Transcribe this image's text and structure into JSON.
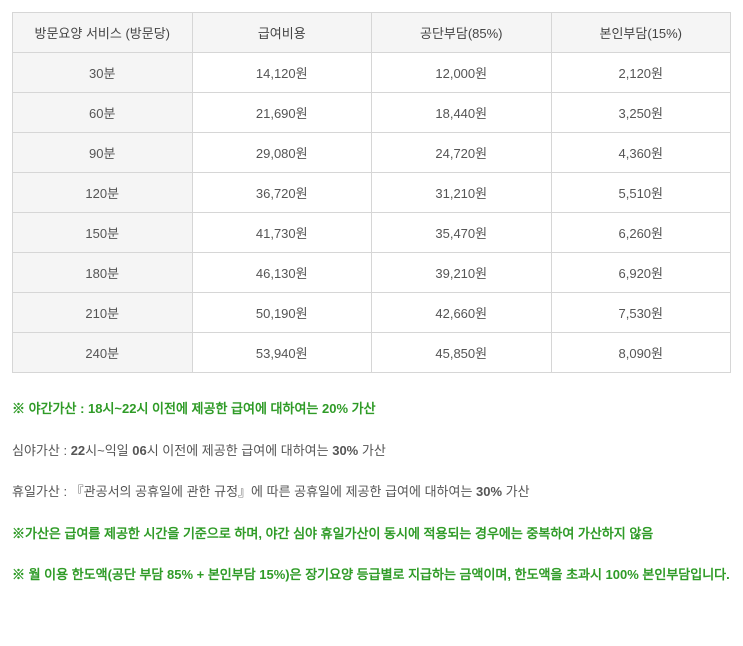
{
  "table": {
    "columns": [
      "방문요양 서비스 (방문당)",
      "급여비용",
      "공단부담(85%)",
      "본인부담(15%)"
    ],
    "rows": [
      [
        "30분",
        "14,120원",
        "12,000원",
        "2,120원"
      ],
      [
        "60분",
        "21,690원",
        "18,440원",
        "3,250원"
      ],
      [
        "90분",
        "29,080원",
        "24,720원",
        "4,360원"
      ],
      [
        "120분",
        "36,720원",
        "31,210원",
        "5,510원"
      ],
      [
        "150분",
        "41,730원",
        "35,470원",
        "6,260원"
      ],
      [
        "180분",
        "46,130원",
        "39,210원",
        "6,920원"
      ],
      [
        "210분",
        "50,190원",
        "42,660원",
        "7,530원"
      ],
      [
        "240분",
        "53,940원",
        "45,850원",
        "8,090원"
      ]
    ],
    "header_bg": "#f5f5f5",
    "border_color": "#d6d6d6",
    "text_color": "#555555"
  },
  "notes": {
    "n1_prefix": "※ 야간가산 : 18시~22시 이전에 제공한 급여에 대하여는 ",
    "n1_bold": "20%",
    "n1_suffix": " 가산",
    "n2_prefix": "심야가산 : ",
    "n2_bold1": "22",
    "n2_mid1": "시~익일 ",
    "n2_bold2": "06",
    "n2_mid2": "시 이전에 제공한 급여에 대하여는 ",
    "n2_bold3": "30%",
    "n2_suffix": " 가산",
    "n3_prefix": "휴일가산 : 『관공서의 공휴일에 관한 규정』에 따른 공휴일에 제공한 급여에 대하여는 ",
    "n3_bold": "30%",
    "n3_suffix": " 가산",
    "n4": "※가산은 급여를 제공한 시간을 기준으로 하며, 야간 심야 휴일가산이 동시에 적용되는 경우에는 중복하여 가산하지 않음",
    "n5": "※ 월 이용 한도액(공단 부담 85% + 본인부담 15%)은 장기요양 등급별로 지급하는 금액이며, 한도액을 초과시 100% 본인부담입니다.",
    "green_color": "#2f9b27"
  }
}
